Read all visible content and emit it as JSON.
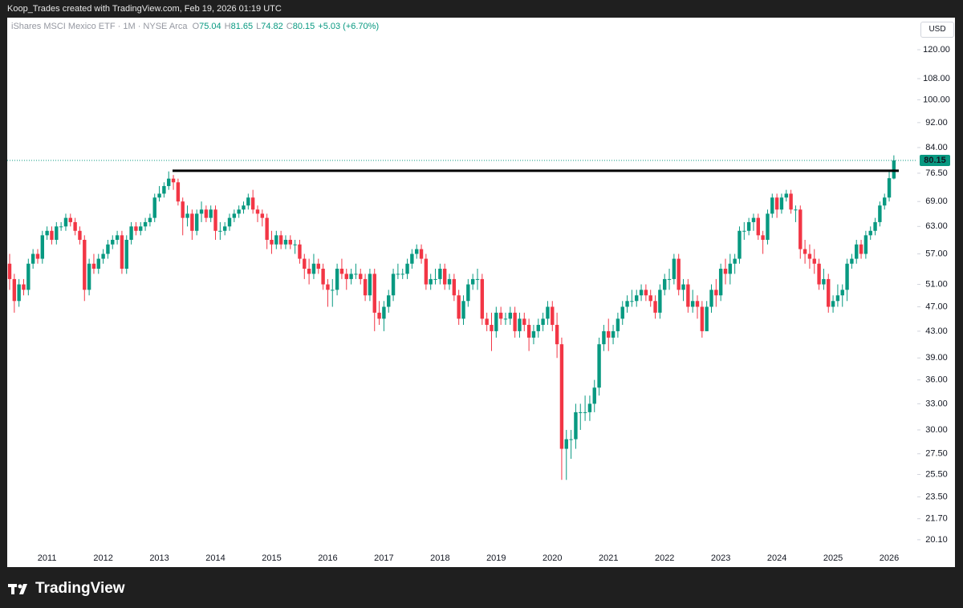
{
  "header": "Koop_Trades created with TradingView.com, Feb 19, 2026 01:19 UTC",
  "legend": {
    "symbol": "iShares MSCI Mexico ETF · 1M · NYSE Arca",
    "o_label": "O",
    "o": 75.04,
    "h_label": "H",
    "h": 81.65,
    "l_label": "L",
    "l": 74.82,
    "c_label": "C",
    "c": 80.15,
    "change": "+5.03 (+6.70%)"
  },
  "currency": "USD",
  "brand": "TradingView",
  "chart_data": {
    "type": "candlestick",
    "log_scale": true,
    "up_color": "#089981",
    "down_color": "#f23645",
    "line_color": "#000000",
    "resistance_level": 77.2,
    "ylim": [
      19.4,
      134.9
    ],
    "yticks": [
      {
        "value": 120,
        "label": "120.00"
      },
      {
        "value": 108,
        "label": "108.00"
      },
      {
        "value": 100,
        "label": "100.00"
      },
      {
        "value": 92,
        "label": "92.00"
      },
      {
        "value": 84,
        "label": "84.00"
      },
      {
        "value": 76.5,
        "label": "76.50"
      },
      {
        "value": 69,
        "label": "69.00"
      },
      {
        "value": 63,
        "label": "63.00"
      },
      {
        "value": 57,
        "label": "57.00"
      },
      {
        "value": 51,
        "label": "51.00"
      },
      {
        "value": 47,
        "label": "47.00"
      },
      {
        "value": 43,
        "label": "43.00"
      },
      {
        "value": 39,
        "label": "39.00"
      },
      {
        "value": 36,
        "label": "36.00"
      },
      {
        "value": 33,
        "label": "33.00"
      },
      {
        "value": 30,
        "label": "30.00"
      },
      {
        "value": 27.5,
        "label": "27.50"
      },
      {
        "value": 25.5,
        "label": "25.50"
      },
      {
        "value": 23.5,
        "label": "23.50"
      },
      {
        "value": 21.7,
        "label": "21.70"
      },
      {
        "value": 20.1,
        "label": "20.10"
      }
    ],
    "categories": [
      null,
      null,
      null,
      null,
      null,
      null,
      null,
      null,
      "2011",
      null,
      null,
      null,
      null,
      null,
      null,
      null,
      null,
      null,
      null,
      null,
      "2012",
      null,
      null,
      null,
      null,
      null,
      null,
      null,
      null,
      null,
      null,
      null,
      "2013",
      null,
      null,
      null,
      null,
      null,
      null,
      null,
      null,
      null,
      null,
      null,
      "2014",
      null,
      null,
      null,
      null,
      null,
      null,
      null,
      null,
      null,
      null,
      null,
      "2015",
      null,
      null,
      null,
      null,
      null,
      null,
      null,
      null,
      null,
      null,
      null,
      "2016",
      null,
      null,
      null,
      null,
      null,
      null,
      null,
      null,
      null,
      null,
      null,
      "2017",
      null,
      null,
      null,
      null,
      null,
      null,
      null,
      null,
      null,
      null,
      null,
      "2018",
      null,
      null,
      null,
      null,
      null,
      null,
      null,
      null,
      null,
      null,
      null,
      "2019",
      null,
      null,
      null,
      null,
      null,
      null,
      null,
      null,
      null,
      null,
      null,
      "2020",
      null,
      null,
      null,
      null,
      null,
      null,
      null,
      null,
      null,
      null,
      null,
      "2021",
      null,
      null,
      null,
      null,
      null,
      null,
      null,
      null,
      null,
      null,
      null,
      "2022",
      null,
      null,
      null,
      null,
      null,
      null,
      null,
      null,
      null,
      null,
      null,
      "2023",
      null,
      null,
      null,
      null,
      null,
      null,
      null,
      null,
      null,
      null,
      null,
      "2024",
      null,
      null,
      null,
      null,
      null,
      null,
      null,
      null,
      null,
      null,
      null,
      "2025",
      null,
      null,
      null,
      null,
      null,
      null,
      null,
      null,
      null,
      null,
      null,
      "2026",
      null
    ],
    "open": [
      55,
      52,
      48,
      51,
      50,
      55,
      57,
      56,
      61,
      62,
      60,
      63,
      63,
      65,
      64,
      62,
      60,
      50,
      55,
      54,
      56,
      57,
      59,
      60,
      61,
      54,
      60,
      63,
      62,
      63,
      64,
      65,
      70,
      71,
      73,
      75,
      74,
      69,
      65,
      66,
      62,
      66,
      67,
      65,
      67,
      62,
      62,
      63,
      65,
      66,
      67,
      68,
      70,
      67,
      66,
      65,
      60,
      59,
      61,
      59,
      60,
      59,
      59,
      56,
      54,
      53,
      55,
      54,
      51,
      50,
      50,
      54,
      53,
      52,
      53,
      53,
      52,
      49,
      53,
      46,
      45,
      47,
      49,
      53,
      53,
      53,
      55,
      57,
      58,
      56,
      51,
      52,
      52,
      54,
      51,
      52,
      49,
      45,
      48,
      51,
      52,
      52,
      45,
      44,
      43,
      46,
      45,
      45,
      46,
      43,
      45,
      44,
      42,
      43,
      44,
      45,
      47,
      44,
      41,
      28,
      29,
      29,
      32,
      32,
      32,
      33,
      35,
      41,
      43,
      42,
      43,
      45,
      47,
      48,
      48,
      49,
      50,
      49,
      48,
      46,
      50,
      52,
      52,
      56,
      50,
      51,
      47,
      48,
      47,
      43,
      47,
      50,
      49,
      54,
      53,
      55,
      56,
      62,
      62,
      64,
      65,
      61,
      60,
      66,
      70,
      67,
      70,
      71,
      67,
      67,
      58,
      57,
      56,
      55,
      51,
      52,
      47,
      48,
      49,
      50,
      55,
      56,
      59,
      57,
      61,
      62,
      64,
      68,
      70,
      75.04
    ],
    "high": [
      57,
      53,
      52,
      52,
      56,
      58,
      58,
      62,
      63,
      63,
      64,
      64,
      66,
      66,
      65,
      63,
      61,
      56,
      57,
      57,
      58,
      60,
      61,
      62,
      62,
      61,
      64,
      64,
      64,
      65,
      66,
      71,
      73,
      74,
      77,
      76,
      75,
      70,
      68,
      67,
      67,
      69,
      68,
      68,
      68,
      64,
      64,
      66,
      67,
      68,
      69,
      71,
      72,
      68,
      67,
      66,
      62,
      62,
      62,
      61,
      61,
      60,
      60,
      57,
      56,
      57,
      56,
      55,
      52,
      52,
      55,
      56,
      54,
      54,
      55,
      54,
      53,
      54,
      54,
      48,
      48,
      50,
      54,
      55,
      54,
      56,
      58,
      59,
      59,
      57,
      53,
      54,
      55,
      55,
      53,
      53,
      50,
      49,
      52,
      53,
      54,
      53,
      46,
      46,
      47,
      47,
      46,
      47,
      47,
      46,
      46,
      45,
      44,
      45,
      46,
      48,
      48,
      46,
      42,
      30,
      30,
      33,
      33,
      34,
      34,
      36,
      42,
      44,
      45,
      44,
      46,
      48,
      49,
      50,
      50,
      51,
      51,
      50,
      49,
      51,
      53,
      54,
      57,
      57,
      52,
      52,
      50,
      49,
      48,
      48,
      51,
      52,
      55,
      56,
      57,
      57,
      63,
      64,
      65,
      66,
      66,
      62,
      67,
      71,
      71,
      71,
      72,
      72,
      68,
      68,
      60,
      59,
      58,
      56,
      54,
      53,
      49,
      51,
      51,
      56,
      57,
      60,
      60,
      62,
      63,
      65,
      69,
      71,
      77,
      81.65
    ],
    "low": [
      50,
      46,
      47,
      49,
      49,
      54,
      55,
      55,
      60,
      59,
      59,
      62,
      62,
      63,
      61,
      59,
      48,
      49,
      53,
      53,
      55,
      56,
      58,
      59,
      53,
      53,
      59,
      61,
      61,
      62,
      63,
      64,
      69,
      70,
      72,
      72,
      68,
      61,
      63,
      60,
      61,
      64,
      64,
      64,
      60,
      60,
      61,
      62,
      64,
      65,
      66,
      67,
      66,
      64,
      63,
      58,
      57,
      58,
      58,
      58,
      58,
      57,
      55,
      52,
      51,
      52,
      53,
      50,
      47,
      47,
      49,
      52,
      50,
      51,
      52,
      51,
      48,
      48,
      43,
      44,
      43,
      46,
      48,
      52,
      52,
      52,
      54,
      56,
      55,
      50,
      50,
      51,
      51,
      50,
      50,
      48,
      44,
      44,
      47,
      50,
      50,
      44,
      43,
      40,
      42,
      44,
      44,
      44,
      42,
      42,
      43,
      40,
      41,
      42,
      43,
      44,
      43,
      39,
      25,
      25,
      27,
      28,
      30,
      31,
      31,
      32,
      34,
      40,
      40,
      41,
      42,
      44,
      46,
      47,
      47,
      48,
      48,
      47,
      45,
      45,
      49,
      50,
      51,
      49,
      48,
      46,
      46,
      45,
      42,
      43,
      46,
      47,
      48,
      51,
      51,
      53,
      55,
      60,
      61,
      62,
      60,
      57,
      59,
      65,
      65,
      66,
      69,
      66,
      64,
      56,
      55,
      54,
      53,
      50,
      50,
      46,
      46,
      47,
      47,
      48,
      54,
      55,
      56,
      56,
      60,
      61,
      63,
      67,
      69,
      74.82
    ],
    "close": [
      52,
      48,
      51,
      50,
      55,
      57,
      56,
      61,
      62,
      60,
      63,
      63,
      65,
      64,
      62,
      60,
      50,
      55,
      54,
      56,
      57,
      59,
      60,
      61,
      54,
      60,
      63,
      62,
      63,
      64,
      65,
      70,
      71,
      73,
      75,
      74,
      69,
      65,
      66,
      62,
      66,
      67,
      65,
      67,
      62,
      62,
      63,
      65,
      66,
      67,
      68,
      70,
      67,
      66,
      65,
      60,
      59,
      61,
      59,
      60,
      59,
      59,
      56,
      54,
      53,
      55,
      54,
      51,
      50,
      50,
      54,
      53,
      52,
      53,
      53,
      52,
      49,
      53,
      46,
      45,
      47,
      49,
      53,
      53,
      53,
      55,
      57,
      58,
      56,
      51,
      52,
      52,
      54,
      51,
      52,
      49,
      45,
      48,
      51,
      52,
      52,
      45,
      44,
      43,
      46,
      45,
      45,
      46,
      43,
      45,
      44,
      42,
      43,
      44,
      45,
      47,
      44,
      41,
      28,
      29,
      29,
      32,
      32,
      32,
      33,
      35,
      41,
      43,
      42,
      43,
      45,
      47,
      48,
      48,
      49,
      50,
      49,
      48,
      46,
      50,
      52,
      52,
      56,
      50,
      51,
      47,
      48,
      47,
      43,
      47,
      50,
      49,
      54,
      53,
      55,
      56,
      62,
      62,
      64,
      65,
      61,
      60,
      66,
      70,
      67,
      70,
      71,
      67,
      67,
      58,
      57,
      56,
      55,
      51,
      52,
      47,
      48,
      49,
      50,
      55,
      56,
      59,
      57,
      61,
      62,
      64,
      68,
      70,
      75.12,
      80.15
    ]
  }
}
